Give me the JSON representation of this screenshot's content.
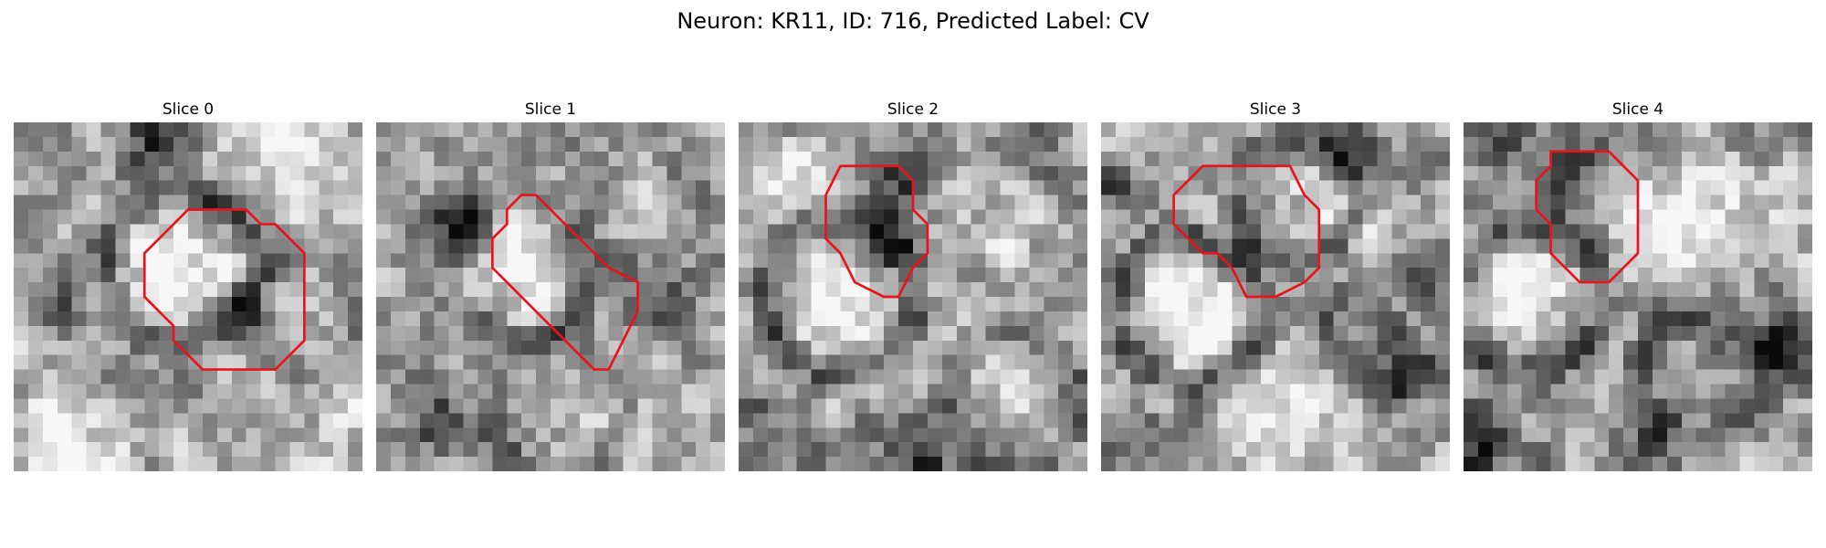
{
  "figure": {
    "title": "Neuron: KR11, ID: 716, Predicted Label: CV"
  },
  "colors": {
    "contour": "#e8141c",
    "background": "#ffffff",
    "colormap": "grayscale"
  },
  "slices": [
    {
      "title": "Slice 0",
      "contour": [
        [
          14,
          6
        ],
        [
          16,
          6
        ],
        [
          17,
          7
        ],
        [
          18,
          7
        ],
        [
          20,
          9
        ],
        [
          20,
          15
        ],
        [
          18,
          17
        ],
        [
          13,
          17
        ],
        [
          11,
          15
        ],
        [
          11,
          14
        ],
        [
          9,
          12
        ],
        [
          9,
          9
        ],
        [
          11,
          7
        ],
        [
          12,
          6
        ]
      ]
    },
    {
      "title": "Slice 1",
      "contour": [
        [
          10,
          5
        ],
        [
          11,
          5
        ],
        [
          12,
          6
        ],
        [
          13,
          7
        ],
        [
          14,
          8
        ],
        [
          15,
          9
        ],
        [
          16,
          10
        ],
        [
          18,
          11
        ],
        [
          18,
          13
        ],
        [
          17,
          15
        ],
        [
          16,
          17
        ],
        [
          15,
          17
        ],
        [
          14,
          16
        ],
        [
          13,
          15
        ],
        [
          12,
          14
        ],
        [
          11,
          13
        ],
        [
          10,
          12
        ],
        [
          9,
          11
        ],
        [
          8,
          10
        ],
        [
          8,
          8
        ],
        [
          9,
          7
        ],
        [
          9,
          6
        ]
      ]
    },
    {
      "title": "Slice 2",
      "contour": [
        [
          7,
          3
        ],
        [
          11,
          3
        ],
        [
          12,
          4
        ],
        [
          12,
          6
        ],
        [
          13,
          7
        ],
        [
          13,
          9
        ],
        [
          12,
          10
        ],
        [
          11,
          12
        ],
        [
          10,
          12
        ],
        [
          8,
          11
        ],
        [
          7,
          9
        ],
        [
          6,
          8
        ],
        [
          6,
          5
        ]
      ]
    },
    {
      "title": "Slice 3",
      "contour": [
        [
          9,
          3
        ],
        [
          13,
          3
        ],
        [
          14,
          5
        ],
        [
          15,
          6
        ],
        [
          15,
          10
        ],
        [
          14,
          11
        ],
        [
          12,
          12
        ],
        [
          10,
          12
        ],
        [
          9,
          10
        ],
        [
          8,
          9
        ],
        [
          7,
          9
        ],
        [
          6,
          8
        ],
        [
          5,
          7
        ],
        [
          5,
          5
        ],
        [
          7,
          3
        ]
      ]
    },
    {
      "title": "Slice 4",
      "contour": [
        [
          6,
          2
        ],
        [
          10,
          2
        ],
        [
          11,
          3
        ],
        [
          12,
          4
        ],
        [
          12,
          9
        ],
        [
          11,
          10
        ],
        [
          10,
          11
        ],
        [
          8,
          11
        ],
        [
          7,
          10
        ],
        [
          6,
          9
        ],
        [
          6,
          7
        ],
        [
          5,
          6
        ],
        [
          5,
          4
        ],
        [
          6,
          3
        ]
      ]
    }
  ]
}
